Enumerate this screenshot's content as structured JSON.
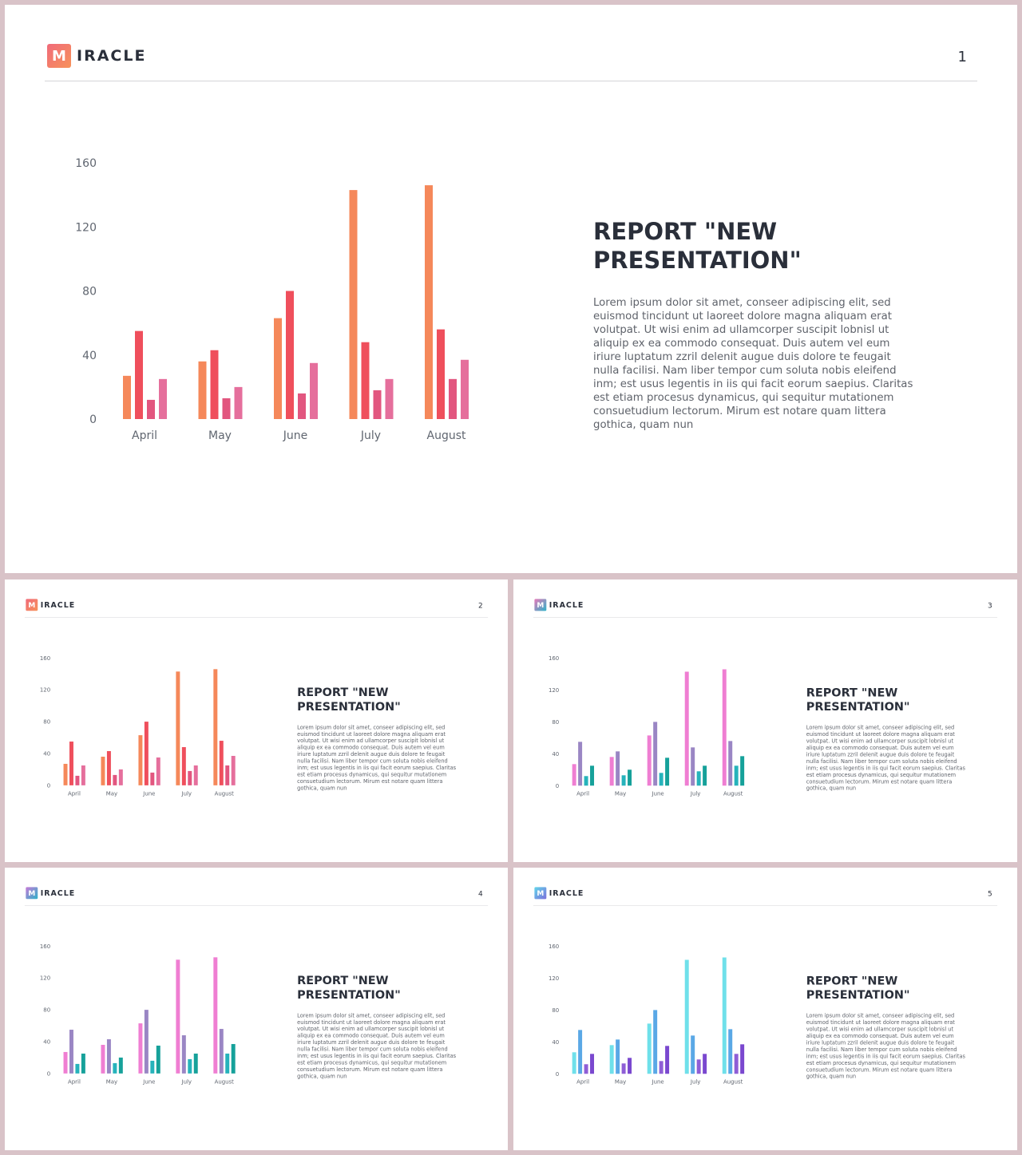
{
  "brand": {
    "letter": "M",
    "name": "IRACLE"
  },
  "slides": [
    {
      "number": "1",
      "logo_gradient": [
        "#f06a7a",
        "#f7925a"
      ],
      "series_colors": [
        "#f5885a",
        "#ef4f5c",
        "#e2567f",
        "#e56f9c"
      ],
      "title": "REPORT \"NEW PRESENTATION\"",
      "body": "Lorem ipsum dolor sit amet, conseer adipiscing elit, sed euismod tincidunt ut laoreet dolore magna aliquam erat volutpat. Ut wisi enim ad ullamcorper suscipit lobnisl ut aliquip ex ea commodo consequat. Duis autem vel eum iriure luptatum zzril delenit augue duis dolore te feugait nulla facilisi. Nam liber tempor cum soluta nobis eleifend inm; est usus legentis in iis qui facit eorum saepius. Claritas est etiam procesus dynamicus, qui sequitur mutationem consuetudium lectorum. Mirum est notare quam littera gothica, quam nun"
    },
    {
      "number": "2",
      "logo_gradient": [
        "#f06a7a",
        "#f7925a"
      ],
      "series_colors": [
        "#f5885a",
        "#ef4f5c",
        "#e2567f",
        "#e56f9c"
      ],
      "title": "REPORT \"NEW PRESENTATION\"",
      "body": "Lorem ipsum dolor sit amet, conseer adipiscing elit, sed euismod tincidunt ut laoreet dolore magna aliquam erat volutpat. Ut wisi enim ad ullamcorper suscipit lobnisl ut aliquip ex ea commodo consequat. Duis autem vel eum iriure luptatum zzril delenit augue duis dolore te feugait nulla facilisi. Nam liber tempor cum soluta nobis eleifend inm; est usus legentis in iis qui facit eorum saepius. Claritas est etiam procesus dynamicus, qui sequitur mutationem consuetudium lectorum. Mirum est notare quam littera gothica, quam nun"
    },
    {
      "number": "3",
      "logo_gradient": [
        "#e879b9",
        "#2db3c9"
      ],
      "series_colors": [
        "#ef7ed2",
        "#9a86c4",
        "#26b3bb",
        "#16a19a"
      ],
      "title": "REPORT \"NEW PRESENTATION\"",
      "body": "Lorem ipsum dolor sit amet, conseer adipiscing elit, sed euismod tincidunt ut laoreet dolore magna aliquam erat volutpat. Ut wisi enim ad ullamcorper suscipit lobnisl ut aliquip ex ea commodo consequat. Duis autem vel eum iriure luptatum zzril delenit augue duis dolore te feugait nulla facilisi. Nam liber tempor cum soluta nobis eleifend inm; est usus legentis in iis qui facit eorum saepius. Claritas est etiam procesus dynamicus, qui sequitur mutationem consuetudium lectorum. Mirum est notare quam littera gothica, quam nun"
    },
    {
      "number": "4",
      "logo_gradient": [
        "#c77ad8",
        "#2db3c9"
      ],
      "series_colors": [
        "#ef7ed2",
        "#9a86c4",
        "#26b3bb",
        "#16a19a"
      ],
      "title": "REPORT \"NEW PRESENTATION\"",
      "body": "Lorem ipsum dolor sit amet, conseer adipiscing elit, sed euismod tincidunt ut laoreet dolore magna aliquam erat volutpat. Ut wisi enim ad ullamcorper suscipit lobnisl ut aliquip ex ea commodo consequat. Duis autem vel eum iriure luptatum zzril delenit augue duis dolore te feugait nulla facilisi. Nam liber tempor cum soluta nobis eleifend inm; est usus legentis in iis qui facit eorum saepius. Claritas est etiam procesus dynamicus, qui sequitur mutationem consuetudium lectorum. Mirum est notare quam littera gothica, quam nun"
    },
    {
      "number": "5",
      "logo_gradient": [
        "#62d6ea",
        "#7d6fdc"
      ],
      "series_colors": [
        "#6fe0ea",
        "#5aa8e6",
        "#8f5ed6",
        "#7a48cf"
      ],
      "title": "REPORT \"NEW PRESENTATION\"",
      "body": "Lorem ipsum dolor sit amet, conseer adipiscing elit, sed euismod tincidunt ut laoreet dolore magna aliquam erat volutpat. Ut wisi enim ad ullamcorper suscipit lobnisl ut aliquip ex ea commodo consequat. Duis autem vel eum iriure luptatum zzril delenit augue duis dolore te feugait nulla facilisi. Nam liber tempor cum soluta nobis eleifend inm; est usus legentis in iis qui facit eorum saepius. Claritas est etiam procesus dynamicus, qui sequitur mutationem consuetudium lectorum. Mirum est notare quam littera gothica, quam nun"
    }
  ],
  "chart_data": {
    "type": "bar",
    "categories": [
      "April",
      "May",
      "June",
      "July",
      "August"
    ],
    "series": [
      {
        "values": [
          27,
          36,
          63,
          143,
          146
        ]
      },
      {
        "values": [
          55,
          43,
          80,
          48,
          56
        ]
      },
      {
        "values": [
          12,
          13,
          16,
          18,
          25
        ]
      },
      {
        "values": [
          25,
          20,
          35,
          25,
          37
        ]
      }
    ],
    "yticks": [
      "0",
      "40",
      "80",
      "120",
      "160"
    ],
    "ylim": [
      0,
      160
    ],
    "title": "",
    "xlabel": "",
    "ylabel": ""
  }
}
